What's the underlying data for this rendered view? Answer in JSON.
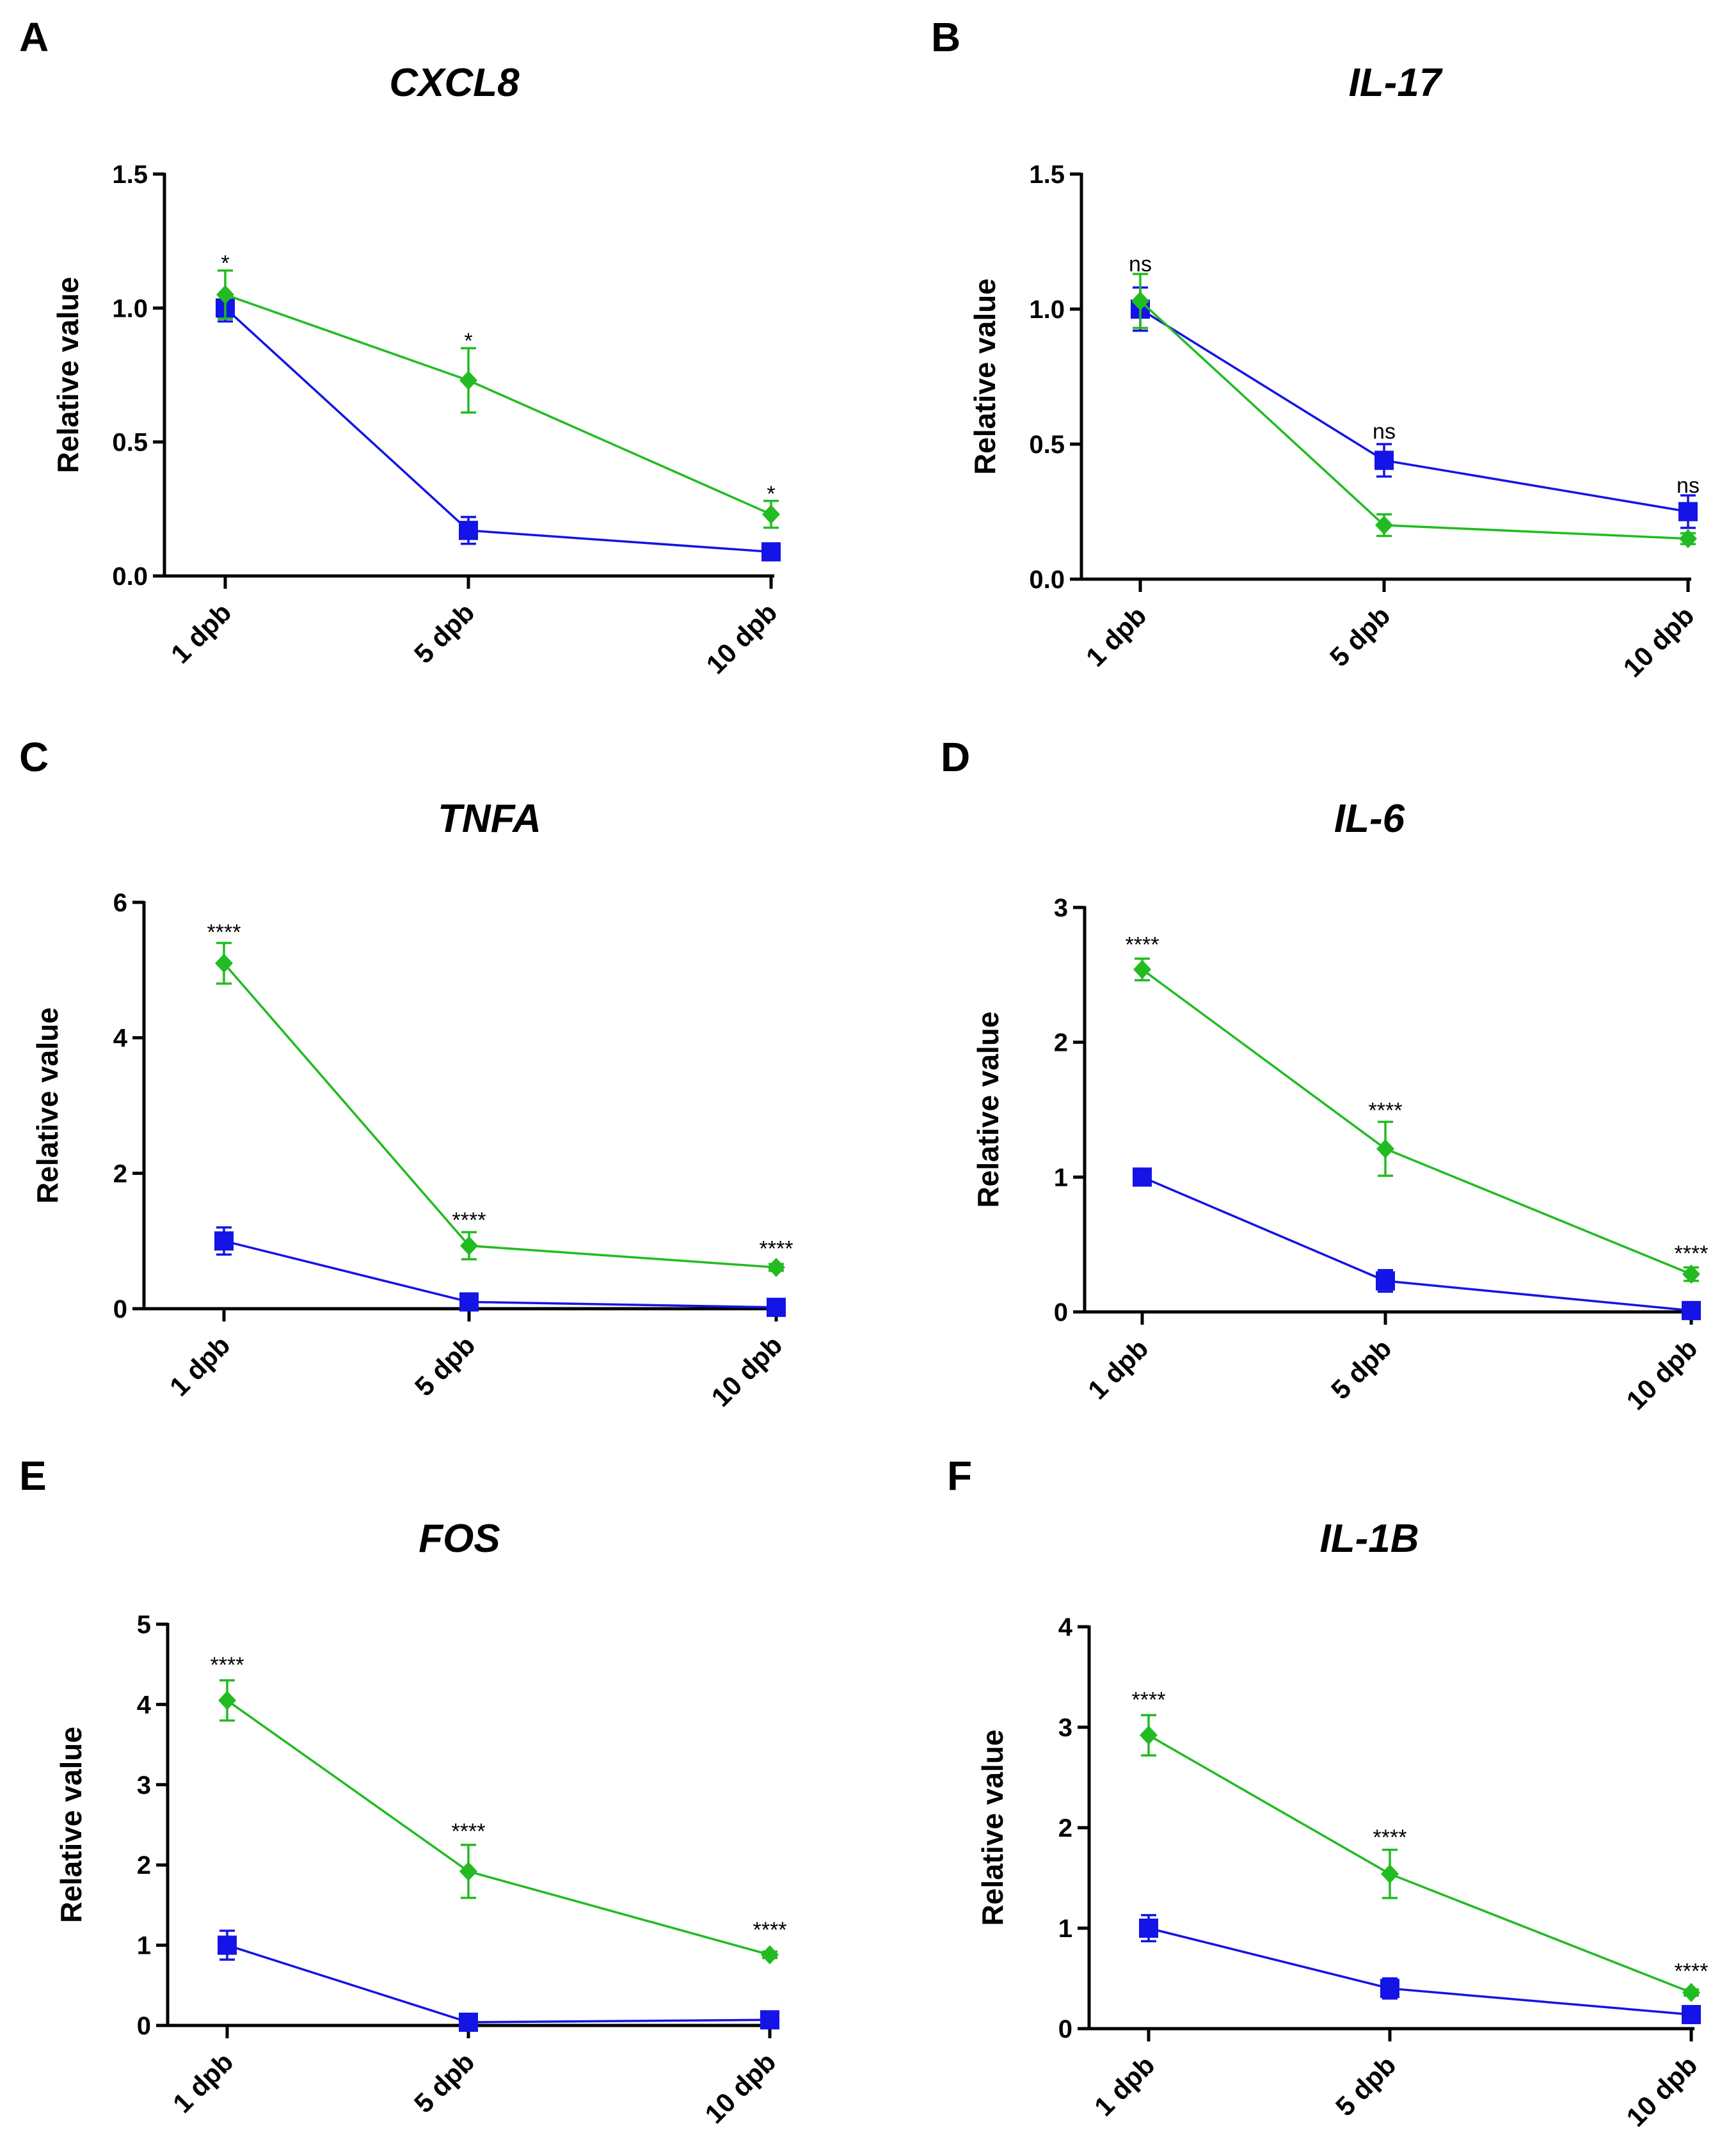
{
  "colors": {
    "blue": "#1414e6",
    "green": "#22bb22",
    "axis": "#000000"
  },
  "chart_data": [
    {
      "type": "line",
      "panel": "A",
      "title": "CXCL8",
      "xlabel": "",
      "ylabel": "Relative value",
      "categories": [
        "1 dpb",
        "5 dpb",
        "10 dpb"
      ],
      "ylim": [
        0,
        1.5
      ],
      "yticks": [
        "0.0",
        "0.5",
        "1.0",
        "1.5"
      ],
      "ytick_values": [
        0,
        0.5,
        1.0,
        1.5
      ],
      "legend": "none",
      "series": [
        {
          "name": "blue",
          "marker": "square",
          "color": "#1414e6",
          "values": [
            1.0,
            0.17,
            0.09
          ],
          "errors": [
            0.05,
            0.05,
            0.02
          ]
        },
        {
          "name": "green",
          "marker": "diamond",
          "color": "#22bb22",
          "values": [
            1.05,
            0.73,
            0.23
          ],
          "errors": [
            0.09,
            0.12,
            0.05
          ]
        }
      ],
      "annotations": [
        {
          "category": 0,
          "text": "*",
          "y": 1.14
        },
        {
          "category": 1,
          "text": "*",
          "y": 0.85
        },
        {
          "category": 2,
          "text": "*",
          "y": 0.28
        }
      ]
    },
    {
      "type": "line",
      "panel": "B",
      "title": "IL-17",
      "xlabel": "",
      "ylabel": "Relative value",
      "categories": [
        "1 dpb",
        "5 dpb",
        "10 dpb"
      ],
      "ylim": [
        0,
        1.5
      ],
      "yticks": [
        "0.0",
        "0.5",
        "1.0",
        "1.5"
      ],
      "ytick_values": [
        0,
        0.5,
        1.0,
        1.5
      ],
      "legend": "none",
      "series": [
        {
          "name": "blue",
          "marker": "square",
          "color": "#1414e6",
          "values": [
            1.0,
            0.44,
            0.25
          ],
          "errors": [
            0.08,
            0.06,
            0.06
          ]
        },
        {
          "name": "green",
          "marker": "diamond",
          "color": "#22bb22",
          "values": [
            1.03,
            0.2,
            0.15
          ],
          "errors": [
            0.1,
            0.04,
            0.02
          ]
        }
      ],
      "annotations": [
        {
          "category": 0,
          "text": "ns",
          "y": 1.14
        },
        {
          "category": 1,
          "text": "ns",
          "y": 0.52
        },
        {
          "category": 2,
          "text": "ns",
          "y": 0.32
        }
      ]
    },
    {
      "type": "line",
      "panel": "C",
      "title": "TNFA",
      "xlabel": "",
      "ylabel": "Relative value",
      "categories": [
        "1 dpb",
        "5 dpb",
        "10 dpb"
      ],
      "ylim": [
        0,
        6
      ],
      "yticks": [
        "0",
        "2",
        "4",
        "6"
      ],
      "ytick_values": [
        0,
        2,
        4,
        6
      ],
      "legend": "none",
      "series": [
        {
          "name": "blue",
          "marker": "square",
          "color": "#1414e6",
          "values": [
            1.0,
            0.1,
            0.02
          ],
          "errors": [
            0.2,
            0.03,
            0.01
          ]
        },
        {
          "name": "green",
          "marker": "diamond",
          "color": "#22bb22",
          "values": [
            5.1,
            0.93,
            0.61
          ],
          "errors": [
            0.3,
            0.2,
            0.05
          ]
        }
      ],
      "annotations": [
        {
          "category": 0,
          "text": "****",
          "y": 5.45
        },
        {
          "category": 1,
          "text": "****",
          "y": 1.2
        },
        {
          "category": 2,
          "text": "****",
          "y": 0.78
        }
      ]
    },
    {
      "type": "line",
      "panel": "D",
      "title": "IL-6",
      "xlabel": "",
      "ylabel": "Relative value",
      "categories": [
        "1 dpb",
        "5 dpb",
        "10 dpb"
      ],
      "ylim": [
        0,
        3
      ],
      "yticks": [
        "0",
        "1",
        "2",
        "3"
      ],
      "ytick_values": [
        0,
        1,
        2,
        3
      ],
      "legend": "none",
      "series": [
        {
          "name": "blue",
          "marker": "square",
          "color": "#1414e6",
          "values": [
            1.0,
            0.23,
            0.01
          ],
          "errors": [
            0.05,
            0.08,
            0.01
          ]
        },
        {
          "name": "green",
          "marker": "diamond",
          "color": "#22bb22",
          "values": [
            2.54,
            1.21,
            0.28
          ],
          "errors": [
            0.08,
            0.2,
            0.05
          ]
        }
      ],
      "annotations": [
        {
          "category": 0,
          "text": "****",
          "y": 2.67
        },
        {
          "category": 1,
          "text": "****",
          "y": 1.44
        },
        {
          "category": 2,
          "text": "****",
          "y": 0.38
        }
      ]
    },
    {
      "type": "line",
      "panel": "E",
      "title": "FOS",
      "xlabel": "",
      "ylabel": "Relative value",
      "categories": [
        "1 dpb",
        "5 dpb",
        "10 dpb"
      ],
      "ylim": [
        0,
        5
      ],
      "yticks": [
        "0",
        "1",
        "2",
        "3",
        "4",
        "5"
      ],
      "ytick_values": [
        0,
        1,
        2,
        3,
        4,
        5
      ],
      "legend": "none",
      "series": [
        {
          "name": "blue",
          "marker": "square",
          "color": "#1414e6",
          "values": [
            1.0,
            0.04,
            0.07
          ],
          "errors": [
            0.18,
            0.02,
            0.02
          ]
        },
        {
          "name": "green",
          "marker": "diamond",
          "color": "#22bb22",
          "values": [
            4.05,
            1.92,
            0.88
          ],
          "errors": [
            0.25,
            0.33,
            0.04
          ]
        }
      ],
      "annotations": [
        {
          "category": 0,
          "text": "****",
          "y": 4.4
        },
        {
          "category": 1,
          "text": "****",
          "y": 2.33
        },
        {
          "category": 2,
          "text": "****",
          "y": 1.1
        }
      ]
    },
    {
      "type": "line",
      "panel": "F",
      "title": "IL-1B",
      "xlabel": "",
      "ylabel": "Relative value",
      "categories": [
        "1 dpb",
        "5 dpb",
        "10 dpb"
      ],
      "ylim": [
        0,
        4
      ],
      "yticks": [
        "0",
        "1",
        "2",
        "3",
        "4"
      ],
      "ytick_values": [
        0,
        1,
        2,
        3,
        4
      ],
      "legend": "none",
      "series": [
        {
          "name": "blue",
          "marker": "square",
          "color": "#1414e6",
          "values": [
            1.0,
            0.4,
            0.14
          ],
          "errors": [
            0.13,
            0.1,
            0.03
          ]
        },
        {
          "name": "green",
          "marker": "diamond",
          "color": "#22bb22",
          "values": [
            2.92,
            1.54,
            0.36
          ],
          "errors": [
            0.2,
            0.24,
            0.03
          ]
        }
      ],
      "annotations": [
        {
          "category": 0,
          "text": "****",
          "y": 3.2
        },
        {
          "category": 1,
          "text": "****",
          "y": 1.83
        },
        {
          "category": 2,
          "text": "****",
          "y": 0.5
        }
      ]
    }
  ]
}
